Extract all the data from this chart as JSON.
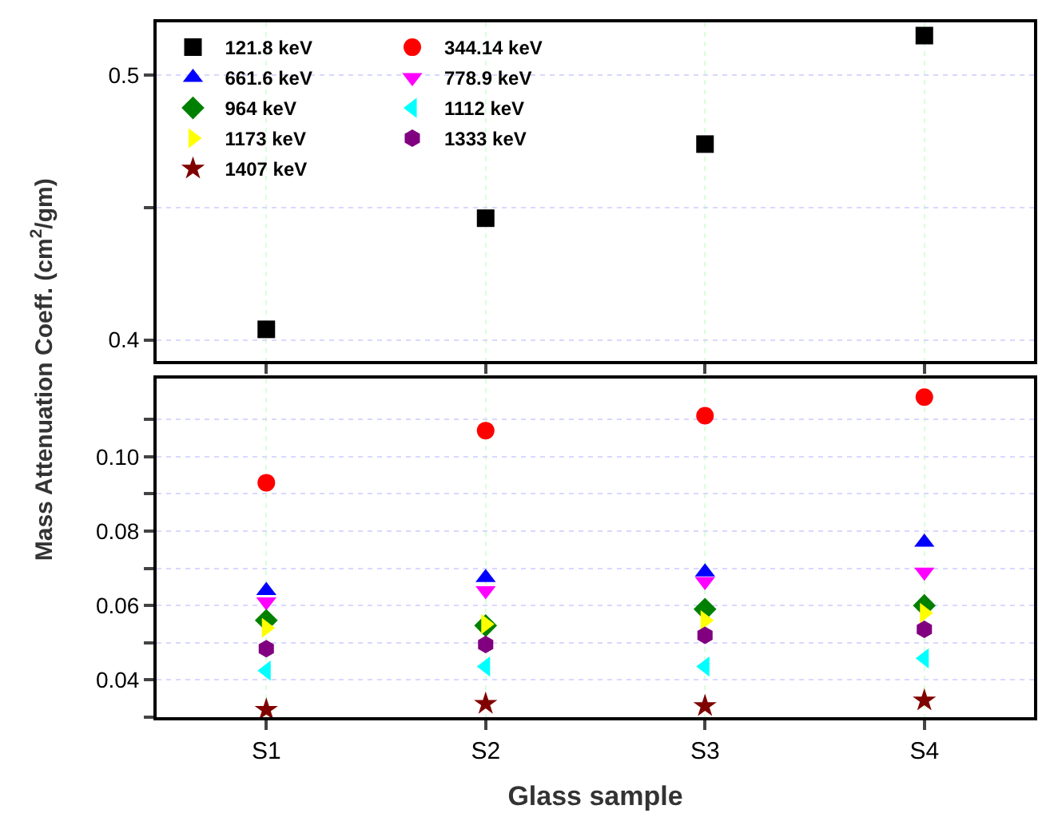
{
  "chart_data": [
    {
      "type": "scatter",
      "ylabel": "Mass Attenuation Coeff. (cm$^{2}$/gm)",
      "ylim": [
        0.392,
        0.52
      ],
      "yticks": [
        0.4,
        {
          "value": 0.45,
          "label": null
        },
        0.5
      ],
      "grid": true,
      "legend": "top left",
      "tick_labels": "y",
      "series": [
        {
          "name": "121.8 keV",
          "color": "#000000",
          "marker": "square",
          "values": [
            0.404,
            0.446,
            0.474,
            0.515
          ]
        },
        {
          "name": "344.14 keV",
          "color": "#ff0000",
          "marker": "circle",
          "values": [
            null,
            null,
            null,
            null
          ]
        },
        {
          "name": "661.6 keV",
          "color": "#0000ff",
          "marker": "triangle",
          "values": [
            null,
            null,
            null,
            null
          ]
        },
        {
          "name": "778.9 keV",
          "color": "#ff00ff",
          "marker": "triangle-down",
          "values": [
            null,
            null,
            null,
            null
          ]
        },
        {
          "name": "964 keV",
          "color": "#008000",
          "marker": "diamond",
          "values": [
            null,
            null,
            null,
            null
          ]
        },
        {
          "name": "1112 keV",
          "color": "#00ffff",
          "marker": "triangle-left",
          "values": [
            null,
            null,
            null,
            null
          ]
        },
        {
          "name": "1173 keV",
          "color": "#ffff00",
          "marker": "triangle-right",
          "values": [
            null,
            null,
            null,
            null
          ]
        },
        {
          "name": "1333 keV",
          "color": "#800080",
          "values": [
            null,
            null,
            null,
            null
          ]
        },
        {
          "name": "1407 keV",
          "color": "#800000",
          "marker": "star",
          "values": [
            null,
            null,
            null,
            null
          ]
        }
      ]
    },
    {
      "type": "scatter",
      "categories": [
        "S1",
        "S2",
        "S3",
        "S4"
      ],
      "xlabel": "Glass sample",
      "ylim": [
        0.03,
        0.121
      ],
      "yticks": [
        {
          "value": 0.03,
          "label": null
        },
        0.04,
        {
          "value": 0.05,
          "label": null
        },
        0.06,
        {
          "value": 0.07,
          "label": null
        },
        0.08,
        {
          "value": 0.09,
          "label": null
        },
        {
          "value": 0.1,
          "label": "0.10"
        },
        {
          "value": 0.11,
          "label": null
        }
      ],
      "grid": true,
      "series": [
        {
          "color": "#ff0000",
          "marker": "circle",
          "values": [
            0.093,
            0.107,
            0.111,
            0.116
          ]
        },
        {
          "color": "#0000ff",
          "marker": "triangle",
          "values": [
            0.064,
            0.0675,
            0.069,
            0.077
          ]
        },
        {
          "color": "#ff00ff",
          "marker": "triangle-down",
          "values": [
            0.061,
            0.064,
            0.0665,
            0.069
          ]
        },
        {
          "color": "#008000",
          "marker": "diamond",
          "values": [
            0.056,
            0.0546,
            0.059,
            0.06
          ]
        },
        {
          "color": "#00ffff",
          "marker": "triangle-left",
          "values": [
            0.0425,
            0.0436,
            0.0436,
            0.0458
          ]
        },
        {
          "color": "#ffff00",
          "marker": "triangle-right",
          "values": [
            0.054,
            0.055,
            0.056,
            0.058
          ]
        },
        {
          "color": "#800080",
          "values": [
            0.0484,
            0.0495,
            0.052,
            0.0536
          ]
        },
        {
          "color": "#800000",
          "marker": "star",
          "values": [
            0.032,
            0.0336,
            0.033,
            0.0345
          ]
        }
      ]
    }
  ]
}
